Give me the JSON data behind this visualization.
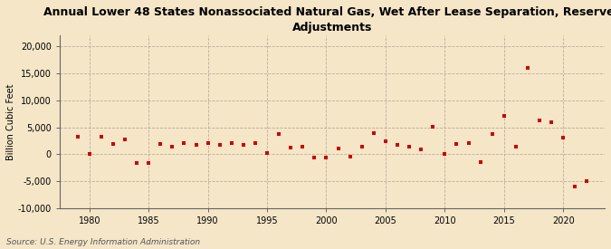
{
  "title": "Annual Lower 48 States Nonassociated Natural Gas, Wet After Lease Separation, Reserves\nAdjustments",
  "ylabel": "Billion Cubic Feet",
  "source": "Source: U.S. Energy Information Administration",
  "background_color": "#f5e6c8",
  "plot_background_color": "#f5e6c8",
  "marker_color": "#cc0000",
  "ylim": [
    -10000,
    22000
  ],
  "yticks": [
    -10000,
    -5000,
    0,
    5000,
    10000,
    15000,
    20000
  ],
  "xlim": [
    1977.5,
    2023.5
  ],
  "xticks": [
    1980,
    1985,
    1990,
    1995,
    2000,
    2005,
    2010,
    2015,
    2020
  ],
  "years": [
    1979,
    1980,
    1981,
    1982,
    1983,
    1984,
    1985,
    1986,
    1987,
    1988,
    1989,
    1990,
    1991,
    1992,
    1993,
    1994,
    1995,
    1996,
    1997,
    1998,
    1999,
    2000,
    2001,
    2002,
    2003,
    2004,
    2005,
    2006,
    2007,
    2008,
    2009,
    2010,
    2011,
    2012,
    2013,
    2014,
    2015,
    2016,
    2017,
    2018,
    2019,
    2020,
    2021,
    2022
  ],
  "values": [
    3200,
    100,
    3200,
    1900,
    2700,
    -1600,
    -1700,
    1900,
    1400,
    2100,
    1700,
    2100,
    1700,
    2000,
    1700,
    2000,
    200,
    3800,
    1200,
    1400,
    -700,
    -700,
    1100,
    -500,
    1400,
    3900,
    2400,
    1800,
    1400,
    900,
    5100,
    100,
    1900,
    2100,
    -1500,
    3800,
    7200,
    1400,
    16000,
    6200,
    6000,
    3000,
    -6000,
    -5000
  ],
  "title_fontsize": 9,
  "tick_fontsize": 7,
  "ylabel_fontsize": 7,
  "source_fontsize": 6.5
}
